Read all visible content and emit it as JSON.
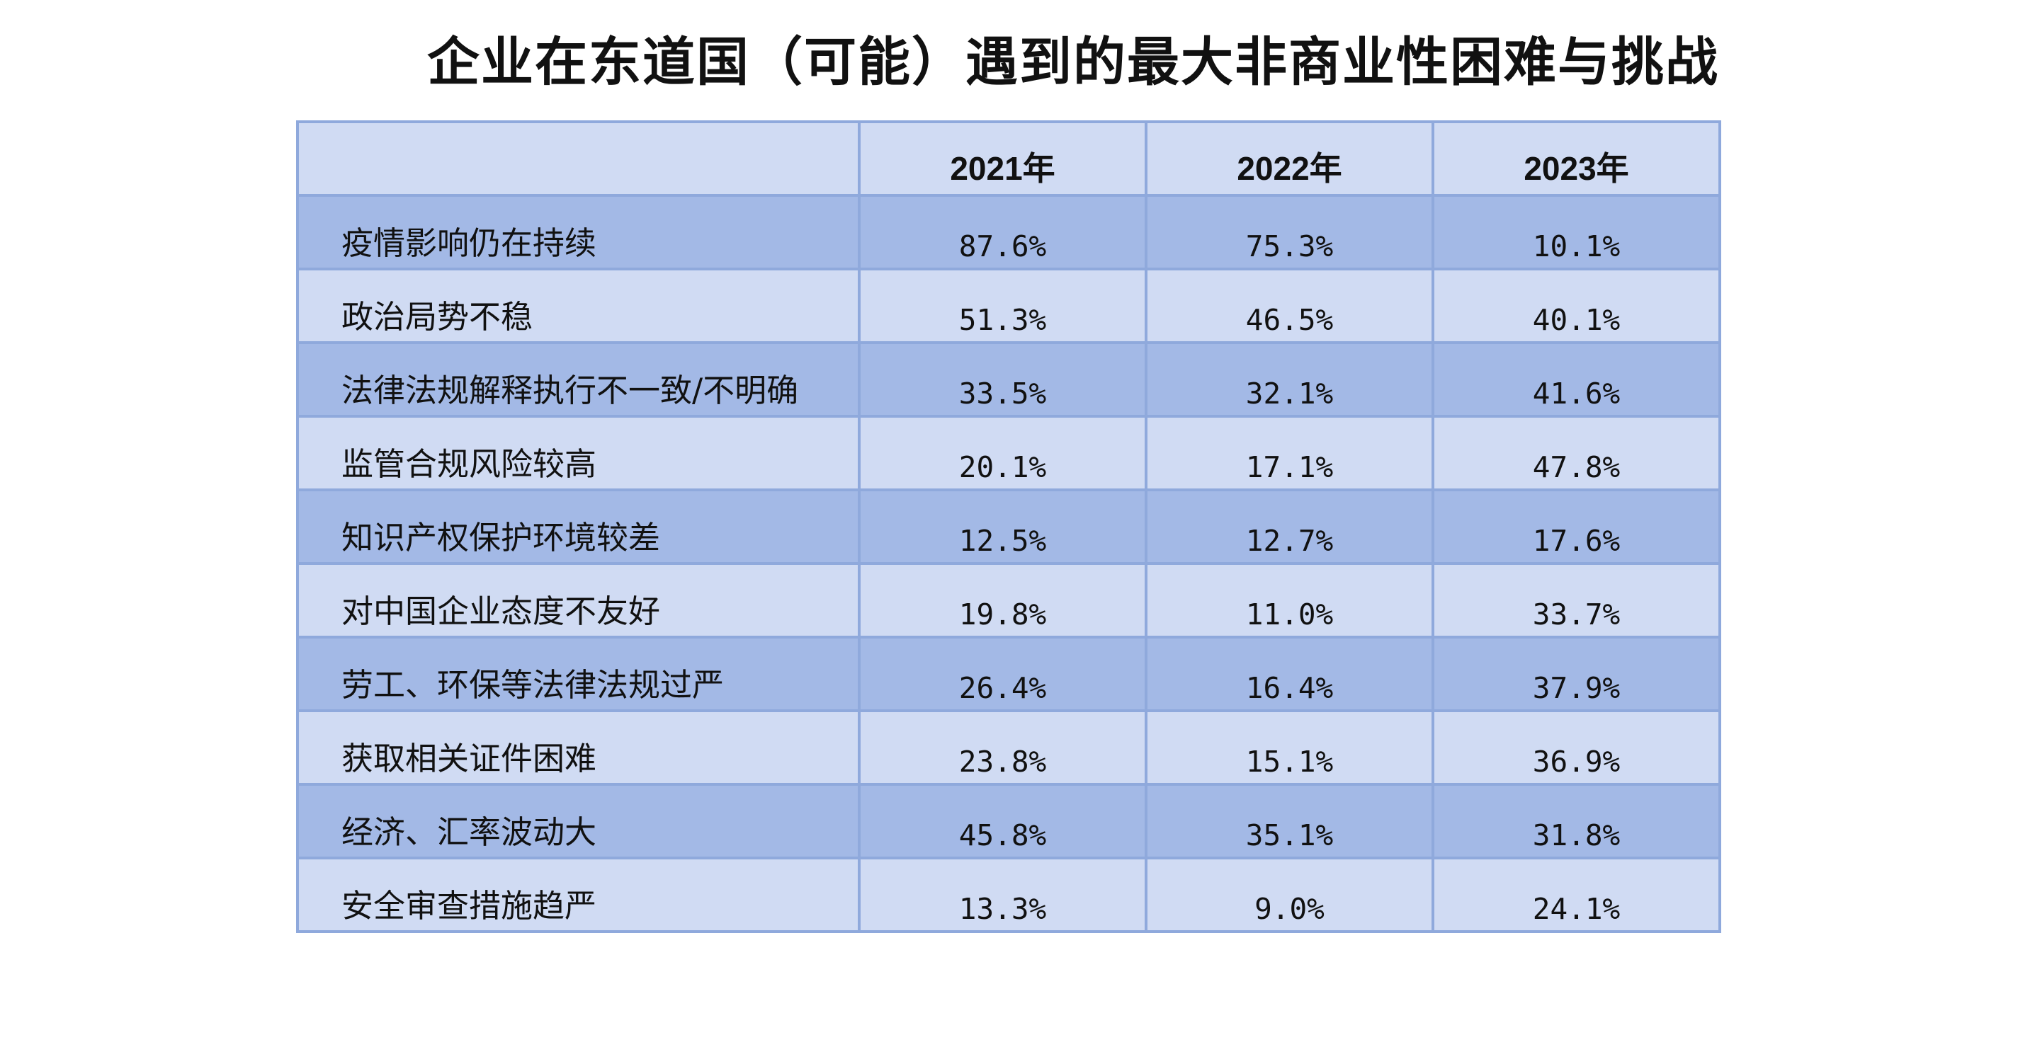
{
  "chart_data": {
    "type": "table",
    "title": "企业在东道国（可能）遇到的最大非商业性困难与挑战",
    "columns": [
      "",
      "2021年",
      "2022年",
      "2023年"
    ],
    "rows": [
      {
        "label": "疫情影响仍在持续",
        "values": [
          "87.6%",
          "75.3%",
          "10.1%"
        ]
      },
      {
        "label": "政治局势不稳",
        "values": [
          "51.3%",
          "46.5%",
          "40.1%"
        ]
      },
      {
        "label": "法律法规解释执行不一致/不明确",
        "values": [
          "33.5%",
          "32.1%",
          "41.6%"
        ]
      },
      {
        "label": "监管合规风险较高",
        "values": [
          "20.1%",
          "17.1%",
          "47.8%"
        ]
      },
      {
        "label": "知识产权保护环境较差",
        "values": [
          "12.5%",
          "12.7%",
          "17.6%"
        ]
      },
      {
        "label": "对中国企业态度不友好",
        "values": [
          "19.8%",
          "11.0%",
          "33.7%"
        ]
      },
      {
        "label": "劳工、环保等法律法规过严",
        "values": [
          "26.4%",
          "16.4%",
          "37.9%"
        ]
      },
      {
        "label": "获取相关证件困难",
        "values": [
          "23.8%",
          "15.1%",
          "36.9%"
        ]
      },
      {
        "label": "经济、汇率波动大",
        "values": [
          "45.8%",
          "35.1%",
          "31.8%"
        ]
      },
      {
        "label": "安全审查措施趋严",
        "values": [
          "13.3%",
          "9.0%",
          "24.1%"
        ]
      }
    ],
    "colors": {
      "header_bg": "#d0dbf3",
      "row_dark": "#a3b9e6",
      "row_light": "#d0dbf3",
      "border": "#8fa9dc"
    }
  }
}
